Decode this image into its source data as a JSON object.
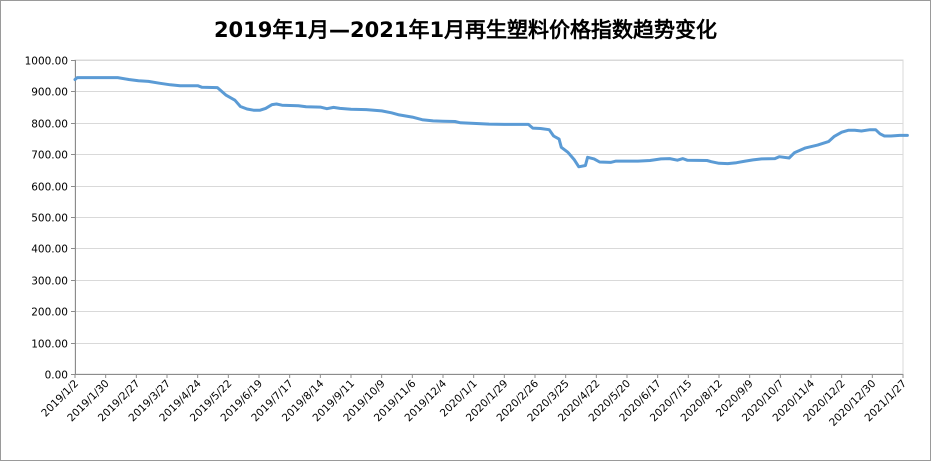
{
  "chart_data": {
    "type": "line",
    "title": "2019年1月—2021年1月再生塑料价格指数趋势变化",
    "xlabel": "",
    "ylabel": "",
    "ylim": [
      0,
      1000
    ],
    "yticks": [
      "0.00",
      "100.00",
      "200.00",
      "300.00",
      "400.00",
      "500.00",
      "600.00",
      "700.00",
      "800.00",
      "900.00",
      "1000.00"
    ],
    "x_start": "2019/1/2",
    "x_end": "2021/1/27",
    "xticks": [
      "2019/1/2",
      "2019/1/30",
      "2019/2/27",
      "2019/3/27",
      "2019/4/24",
      "2019/5/22",
      "2019/6/19",
      "2019/7/17",
      "2019/8/14",
      "2019/9/11",
      "2019/10/9",
      "2019/11/6",
      "2019/12/4",
      "2020/1/1",
      "2020/1/29",
      "2020/2/26",
      "2020/3/25",
      "2020/4/22",
      "2020/5/20",
      "2020/6/17",
      "2020/7/15",
      "2020/8/12",
      "2020/9/9",
      "2020/10/7",
      "2020/11/4",
      "2020/12/2",
      "2020/12/30",
      "2021/1/27"
    ],
    "grid": true,
    "legend": "none",
    "color": "#5B9BD5",
    "series": [
      {
        "points": [
          [
            "2019/1/2",
            938
          ],
          [
            "2019/1/4",
            944
          ],
          [
            "2019/1/30",
            944
          ],
          [
            "2019/2/10",
            944
          ],
          [
            "2019/2/20",
            938
          ],
          [
            "2019/3/1",
            934
          ],
          [
            "2019/3/10",
            932
          ],
          [
            "2019/3/20",
            926
          ],
          [
            "2019/3/30",
            921
          ],
          [
            "2019/4/8",
            918
          ],
          [
            "2019/4/24",
            918
          ],
          [
            "2019/4/28",
            913
          ],
          [
            "2019/5/12",
            912
          ],
          [
            "2019/5/15",
            903
          ],
          [
            "2019/5/20",
            888
          ],
          [
            "2019/5/28",
            872
          ],
          [
            "2019/6/2",
            852
          ],
          [
            "2019/6/8",
            844
          ],
          [
            "2019/6/14",
            840
          ],
          [
            "2019/6/20",
            840
          ],
          [
            "2019/6/25",
            846
          ],
          [
            "2019/7/1",
            858
          ],
          [
            "2019/7/5",
            860
          ],
          [
            "2019/7/10",
            856
          ],
          [
            "2019/7/25",
            854
          ],
          [
            "2019/8/1",
            851
          ],
          [
            "2019/8/14",
            850
          ],
          [
            "2019/8/20",
            845
          ],
          [
            "2019/8/26",
            849
          ],
          [
            "2019/9/1",
            846
          ],
          [
            "2019/9/11",
            843
          ],
          [
            "2019/9/25",
            842
          ],
          [
            "2019/10/9",
            838
          ],
          [
            "2019/10/18",
            832
          ],
          [
            "2019/10/25",
            825
          ],
          [
            "2019/11/6",
            818
          ],
          [
            "2019/11/15",
            810
          ],
          [
            "2019/11/25",
            806
          ],
          [
            "2019/12/4",
            805
          ],
          [
            "2019/12/15",
            804
          ],
          [
            "2019/12/20",
            800
          ],
          [
            "2020/1/1",
            798
          ],
          [
            "2020/1/15",
            796
          ],
          [
            "2020/1/29",
            795
          ],
          [
            "2020/2/20",
            795
          ],
          [
            "2020/2/24",
            783
          ],
          [
            "2020/3/2",
            782
          ],
          [
            "2020/3/10",
            778
          ],
          [
            "2020/3/14",
            758
          ],
          [
            "2020/3/19",
            748
          ],
          [
            "2020/3/21",
            722
          ],
          [
            "2020/3/27",
            706
          ],
          [
            "2020/4/2",
            682
          ],
          [
            "2020/4/6",
            660
          ],
          [
            "2020/4/12",
            664
          ],
          [
            "2020/4/14",
            690
          ],
          [
            "2020/4/20",
            685
          ],
          [
            "2020/4/25",
            675
          ],
          [
            "2020/5/5",
            674
          ],
          [
            "2020/5/10",
            678
          ],
          [
            "2020/5/30",
            678
          ],
          [
            "2020/6/10",
            680
          ],
          [
            "2020/6/20",
            685
          ],
          [
            "2020/6/28",
            686
          ],
          [
            "2020/7/5",
            681
          ],
          [
            "2020/7/10",
            686
          ],
          [
            "2020/7/14",
            681
          ],
          [
            "2020/8/1",
            680
          ],
          [
            "2020/8/5",
            676
          ],
          [
            "2020/8/12",
            671
          ],
          [
            "2020/8/20",
            670
          ],
          [
            "2020/8/28",
            673
          ],
          [
            "2020/9/5",
            678
          ],
          [
            "2020/9/12",
            682
          ],
          [
            "2020/9/20",
            685
          ],
          [
            "2020/10/2",
            686
          ],
          [
            "2020/10/6",
            692
          ],
          [
            "2020/10/15",
            688
          ],
          [
            "2020/10/20",
            705
          ],
          [
            "2020/10/30",
            720
          ],
          [
            "2020/11/10",
            729
          ],
          [
            "2020/11/20",
            740
          ],
          [
            "2020/11/25",
            756
          ],
          [
            "2020/12/2",
            770
          ],
          [
            "2020/12/8",
            776
          ],
          [
            "2020/12/14",
            776
          ],
          [
            "2020/12/20",
            774
          ],
          [
            "2020/12/28",
            778
          ],
          [
            "2021/1/2",
            778
          ],
          [
            "2021/1/6",
            765
          ],
          [
            "2021/1/10",
            758
          ],
          [
            "2021/1/16",
            758
          ],
          [
            "2021/1/24",
            760
          ],
          [
            "2021/1/31",
            760
          ]
        ]
      }
    ]
  }
}
